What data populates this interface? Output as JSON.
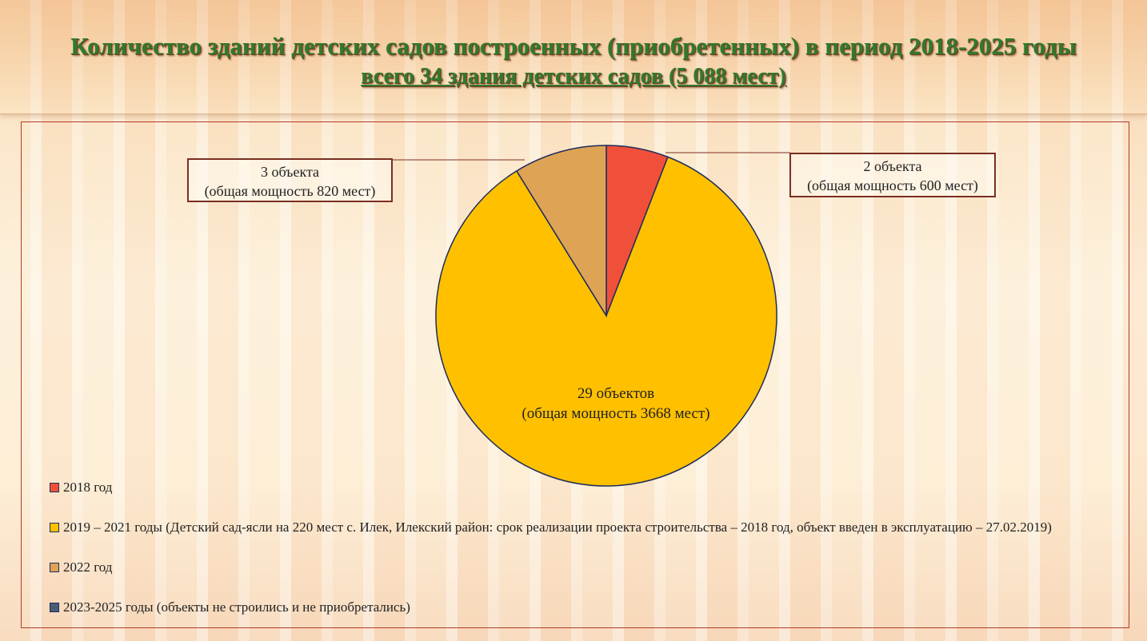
{
  "header": {
    "title": "Количество зданий детских садов построенных (приобретенных) в период 2018-2025 годы",
    "subtitle": "всего 34 здания детских садов (5 088 мест)"
  },
  "colors": {
    "slice_2018": "#f0503a",
    "slice_2019_2021": "#ffc000",
    "slice_2022": "#dea355",
    "slice_2023_2025": "#4a5d78",
    "slice_border": "#1f2d5a",
    "callout_border": "#7a2e22",
    "title_green": "#2f7a2c"
  },
  "chart_data": {
    "type": "pie",
    "series": [
      {
        "name": "2018 год",
        "value": 2,
        "label_line1": "2 объекта",
        "label_line2": "(общая мощность 600 мест)"
      },
      {
        "name": "2019 – 2021 годы (Детский сад-ясли на 220 мест с. Илек, Илекский район: срок реализации проекта строительства – 2018 год, объект введен в эксплуатацию – 27.02.2019)",
        "value": 29,
        "label_line1": "29 объектов",
        "label_line2": "(общая мощность 3668 мест)"
      },
      {
        "name": "2022 год",
        "value": 3,
        "label_line1": "3 объекта",
        "label_line2": "(общая мощность 820 мест)"
      },
      {
        "name": "2023-2025 годы (объекты не строились и не приобретались)",
        "value": 0
      }
    ],
    "legend_position": "bottom-left"
  }
}
